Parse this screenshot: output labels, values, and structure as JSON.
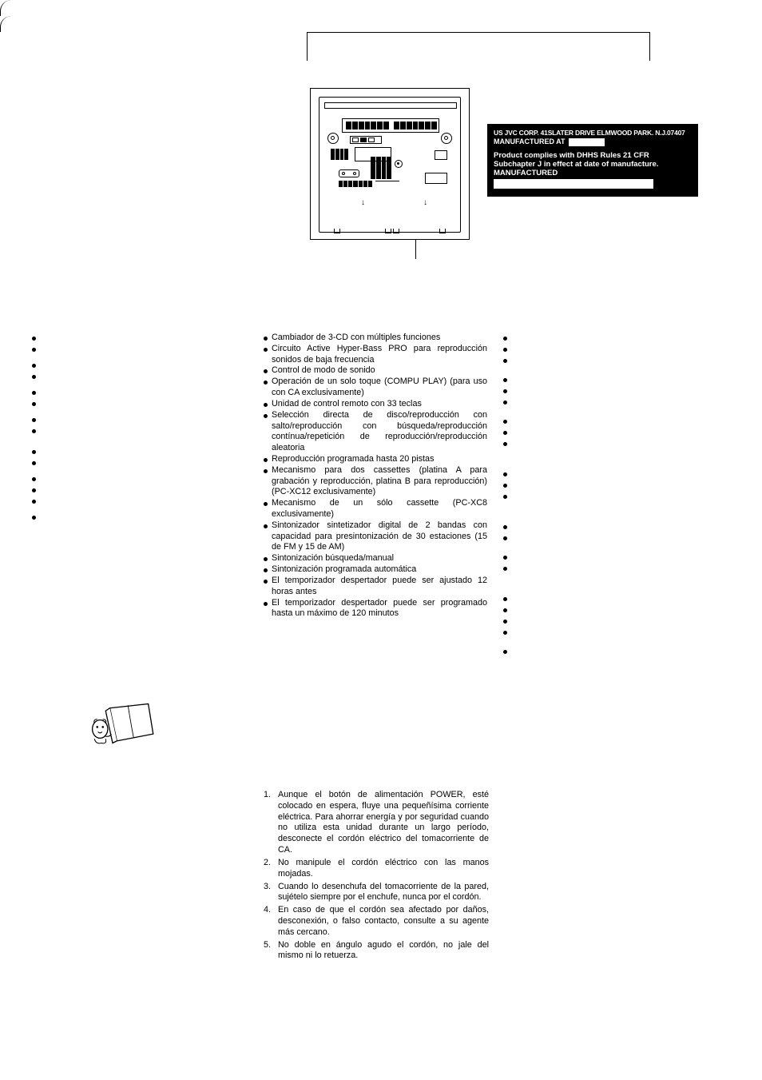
{
  "blackLabel": {
    "line1": "US JVC CORP. 41SLATER DRIVE ELMWOOD PARK. N.J.07407",
    "line2": "MANUFACTURED AT",
    "line3": "Product complies with DHHS Rules 21 CFR",
    "line4": "Subchapter J in effect at date of manufacture.",
    "line5": "MANUFACTURED"
  },
  "features": {
    "leftDotsHeights": [
      14,
      14,
      6,
      14,
      14,
      6,
      14,
      14,
      6,
      14,
      14,
      6,
      6,
      14,
      14,
      6,
      14,
      14,
      14,
      6,
      14
    ],
    "mid": [
      "Cambiador de 3-CD con múltiples funciones",
      "Circuito Active Hyper-Bass PRO para reproducción sonidos de baja frecuencia",
      "Control de modo de sonido",
      "Operación de un solo toque (COMPU PLAY) (para uso con CA exclusivamente)",
      "Unidad de control remoto con 33 teclas",
      "Selección directa de disco/reproducción con salto/reproducción con búsqueda/reproducción contínua/repetición de reproducción/reproducción aleatoria",
      "Reproducción programada hasta 20 pistas",
      "Mecanismo para dos cassettes (platina A para grabación y reproducción, platina B para reproducción) (PC-XC12 exclusivamente)",
      "Mecanismo de un sólo cassette (PC-XC8 exclusivamente)",
      "Sintonizador sintetizador digital de 2 bandas con capacidad para presintonización de 30 estaciones (15 de FM y 15 de AM)",
      "Sintonización búsqueda/manual",
      "Sintonización programada automática",
      "El temporizador despertador puede ser ajustado 12 horas antes",
      "El temporizador despertador puede ser programado hasta un máximo de 120 minutos"
    ],
    "rightDotsHeights": [
      14,
      14,
      24,
      14,
      14,
      24,
      14,
      14,
      38,
      14,
      14,
      38,
      14,
      24,
      14,
      38,
      14,
      14,
      14,
      24,
      14
    ]
  },
  "safety": {
    "mid": [
      "Aunque el botón de alimentación POWER, esté colocado en espera, fluye una pequeñísima corriente eléctrica. Para ahorrar energía y por seguridad cuando no utiliza esta unidad durante un largo período, desconecte el cordón eléctrico del tomacorriente de CA.",
      "No manipule el cordón eléctrico con las manos mojadas.",
      "Cuando lo desenchufa del tomacorriente de la pared, sujételo siempre por el enchufe, nunca por el cordón.",
      "En caso de que el cordón sea afectado por daños, desconexión, o falso contacto, consulte a su agente más cercano.",
      "No doble en ángulo agudo el cordón, no jale del mismo ni lo retuerza."
    ]
  }
}
